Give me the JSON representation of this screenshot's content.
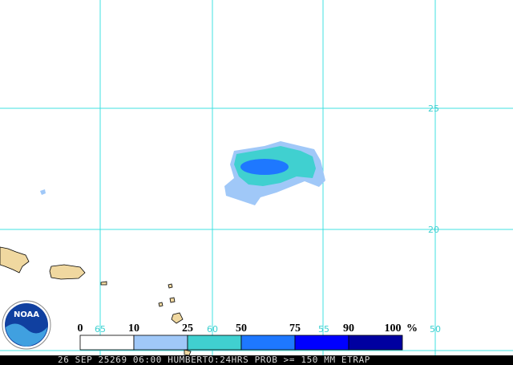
{
  "map": {
    "logo": "NOAA",
    "lat_labels": [
      "25",
      "20"
    ],
    "lon_labels": [
      "65",
      "60",
      "55",
      "50"
    ],
    "legend": {
      "bins": [
        "0",
        "10",
        "25",
        "50",
        "75",
        "90",
        "100"
      ],
      "unit": "%",
      "colors": [
        "#ffffff",
        "#a0c8f8",
        "#40d0d0",
        "#1e78ff",
        "#0000ff",
        "#0000a0"
      ]
    },
    "footer": "26 SEP 25269 06:00 HUMBERTO:24HRS PROB >= 150 MM ETRAP"
  }
}
